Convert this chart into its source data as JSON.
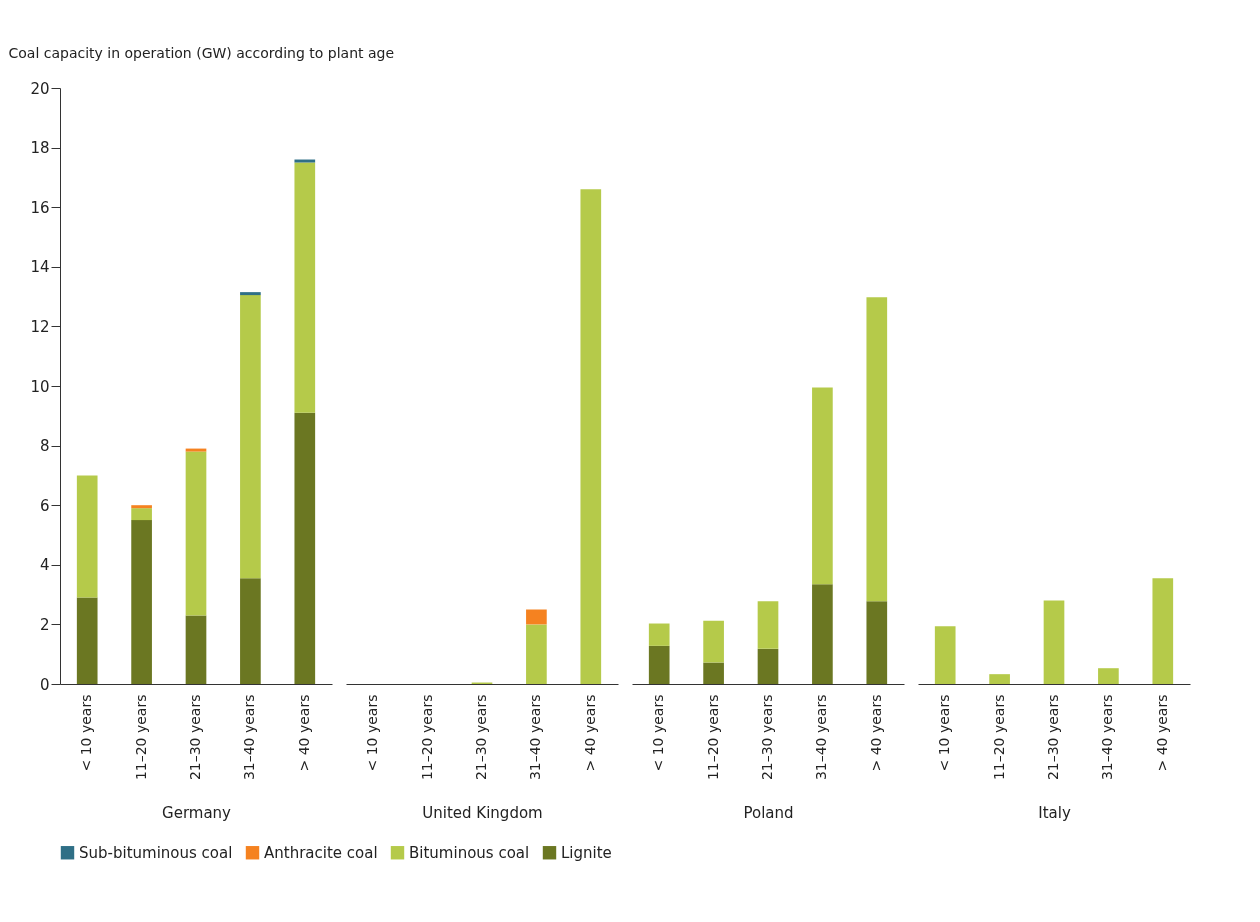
{
  "chart_data": [
    {
      "type": "bar",
      "stacked": true,
      "ylabel": "Coal capacity in operation (GW) according to plant age",
      "xlabel": "Germany",
      "legend": "bottom",
      "grid": false,
      "ylim": [
        0,
        20
      ],
      "yticks": [
        0,
        2,
        4,
        6,
        8,
        10,
        12,
        14,
        16,
        18,
        20
      ],
      "categories": [
        "< 10 years",
        "11–20 years",
        "21–30 years",
        "31–40 years",
        "> 40 years"
      ],
      "series": [
        {
          "name": "Lignite",
          "color": "#6b7722",
          "values": [
            2.9,
            5.5,
            2.3,
            3.55,
            9.1
          ]
        },
        {
          "name": "Bituminous coal",
          "color": "#b5ca4a",
          "values": [
            4.1,
            0.4,
            5.5,
            9.5,
            8.4
          ]
        },
        {
          "name": "Anthracite coal",
          "color": "#f58220",
          "values": [
            0,
            0.1,
            0.1,
            0,
            0
          ]
        },
        {
          "name": "Sub-bituminous coal",
          "color": "#2f6f86",
          "values": [
            0,
            0,
            0,
            0.1,
            0.1
          ]
        }
      ]
    },
    {
      "type": "bar",
      "stacked": true,
      "xlabel": "United Kingdom",
      "grid": false,
      "tick_labels": "x",
      "ylim": [
        0,
        20
      ],
      "categories": [
        "< 10 years",
        "11–20 years",
        "21–30 years",
        "31–40 years",
        "> 40 years"
      ],
      "series": [
        {
          "color": "#6b7722",
          "values": [
            0,
            0,
            0,
            0,
            0
          ]
        },
        {
          "color": "#b5ca4a",
          "values": [
            0,
            0,
            0.05,
            2.0,
            16.6
          ]
        },
        {
          "color": "#f58220",
          "values": [
            0,
            0,
            0,
            0.5,
            0
          ]
        },
        {
          "color": "#2f6f86",
          "values": [
            0,
            0,
            0,
            0,
            0
          ]
        }
      ]
    },
    {
      "type": "bar",
      "stacked": true,
      "xlabel": "Poland",
      "grid": false,
      "tick_labels": "x",
      "ylim": [
        0,
        20
      ],
      "categories": [
        "< 10 years",
        "11–20 years",
        "21–30 years",
        "31–40 years",
        "> 40 years"
      ],
      "series": [
        {
          "color": "#6b7722",
          "values": [
            1.28,
            0.72,
            1.18,
            3.35,
            2.78
          ]
        },
        {
          "color": "#b5ca4a",
          "values": [
            0.75,
            1.4,
            1.6,
            6.6,
            10.2
          ]
        },
        {
          "color": "#f58220",
          "values": [
            0,
            0,
            0,
            0,
            0
          ]
        },
        {
          "color": "#2f6f86",
          "values": [
            0,
            0,
            0,
            0,
            0
          ]
        }
      ]
    },
    {
      "type": "bar",
      "stacked": true,
      "xlabel": "Italy",
      "grid": false,
      "tick_labels": "x",
      "ylim": [
        0,
        20
      ],
      "categories": [
        "< 10 years",
        "11–20 years",
        "21–30 years",
        "31–40 years",
        "> 40 years"
      ],
      "series": [
        {
          "color": "#6b7722",
          "values": [
            0,
            0,
            0,
            0,
            0
          ]
        },
        {
          "color": "#b5ca4a",
          "values": [
            1.94,
            0.33,
            2.8,
            0.53,
            3.55
          ]
        },
        {
          "color": "#f58220",
          "values": [
            0,
            0,
            0,
            0,
            0
          ]
        },
        {
          "color": "#2f6f86",
          "values": [
            0,
            0,
            0,
            0,
            0
          ]
        }
      ]
    }
  ]
}
